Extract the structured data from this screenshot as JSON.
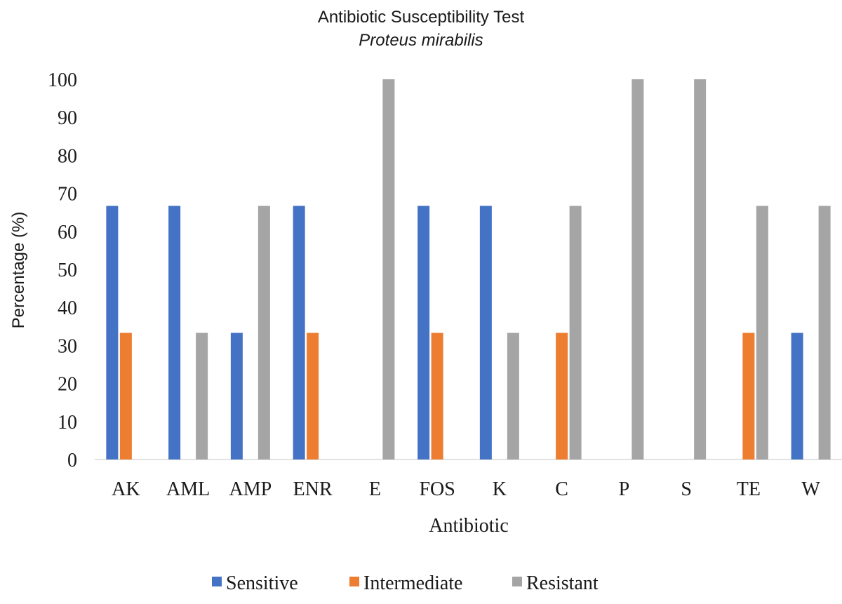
{
  "chart_data": {
    "type": "bar",
    "title": "Antibiotic Susceptibility Test",
    "subtitle": "Proteus mirabilis",
    "xlabel": "Antibiotic",
    "ylabel": "Percentage (%)",
    "ylim": [
      0,
      100
    ],
    "yticks": [
      "0",
      "10",
      "20",
      "30",
      "40",
      "50",
      "60",
      "70",
      "80",
      "90",
      "100"
    ],
    "grid": false,
    "legend_position": "bottom",
    "categories": [
      "AK",
      "AML",
      "AMP",
      "ENR",
      "E",
      "FOS",
      "K",
      "C",
      "P",
      "S",
      "TE",
      "W"
    ],
    "series": [
      {
        "name": "Sensitive",
        "color": "#4472C4",
        "values": [
          66.7,
          66.7,
          33.3,
          66.7,
          0,
          66.7,
          66.7,
          0,
          0,
          0,
          0,
          33.3
        ]
      },
      {
        "name": "Intermediate",
        "color": "#ED7D31",
        "values": [
          33.3,
          0,
          0,
          33.3,
          0,
          33.3,
          0,
          33.3,
          0,
          0,
          33.3,
          0
        ]
      },
      {
        "name": "Resistant",
        "color": "#A5A5A5",
        "values": [
          0,
          33.3,
          66.7,
          0,
          100,
          0,
          33.3,
          66.7,
          100,
          100,
          66.7,
          66.7
        ]
      }
    ]
  }
}
